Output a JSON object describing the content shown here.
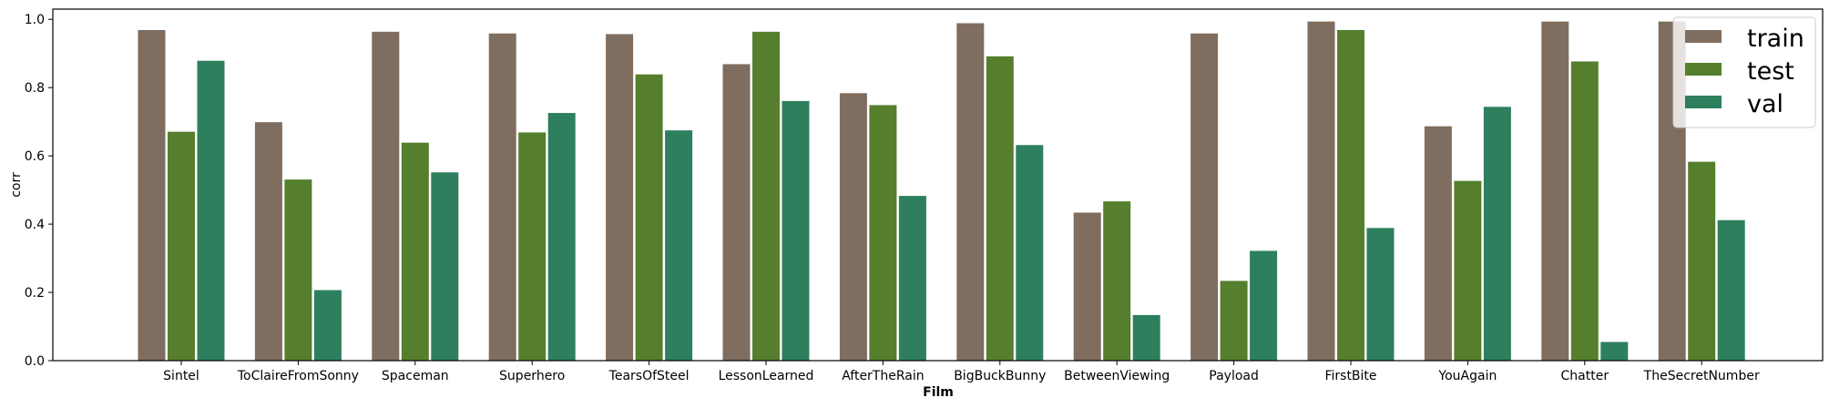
{
  "chart_data": {
    "type": "bar",
    "title": "",
    "xlabel": "Film",
    "ylabel": "corr",
    "ylim": [
      0,
      1.03
    ],
    "yticks": [
      0.0,
      0.2,
      0.4,
      0.6,
      0.8,
      1.0
    ],
    "ytick_labels": [
      "0.0",
      "0.2",
      "0.4",
      "0.6",
      "0.8",
      "1.0"
    ],
    "grid": false,
    "legend_position": "top-right",
    "categories": [
      "Sintel",
      "ToClaireFromSonny",
      "Spaceman",
      "Superhero",
      "TearsOfSteel",
      "LessonLearned",
      "AfterTheRain",
      "BigBuckBunny",
      "BetweenViewing",
      "Payload",
      "FirstBite",
      "YouAgain",
      "Chatter",
      "TheSecretNumber"
    ],
    "series": [
      {
        "name": "train",
        "color": "#7f6d5f",
        "values": [
          0.97,
          0.7,
          0.965,
          0.96,
          0.958,
          0.87,
          0.785,
          0.99,
          0.435,
          0.96,
          0.995,
          0.688,
          0.995,
          0.995
        ]
      },
      {
        "name": "test",
        "color": "#557f2d",
        "values": [
          0.672,
          0.532,
          0.64,
          0.67,
          0.84,
          0.965,
          0.75,
          0.893,
          0.468,
          0.235,
          0.97,
          0.528,
          0.878,
          0.584
        ]
      },
      {
        "name": "val",
        "color": "#2d7f5e",
        "values": [
          0.88,
          0.208,
          0.553,
          0.727,
          0.676,
          0.762,
          0.484,
          0.633,
          0.135,
          0.323,
          0.39,
          0.745,
          0.056,
          0.413
        ]
      }
    ]
  }
}
